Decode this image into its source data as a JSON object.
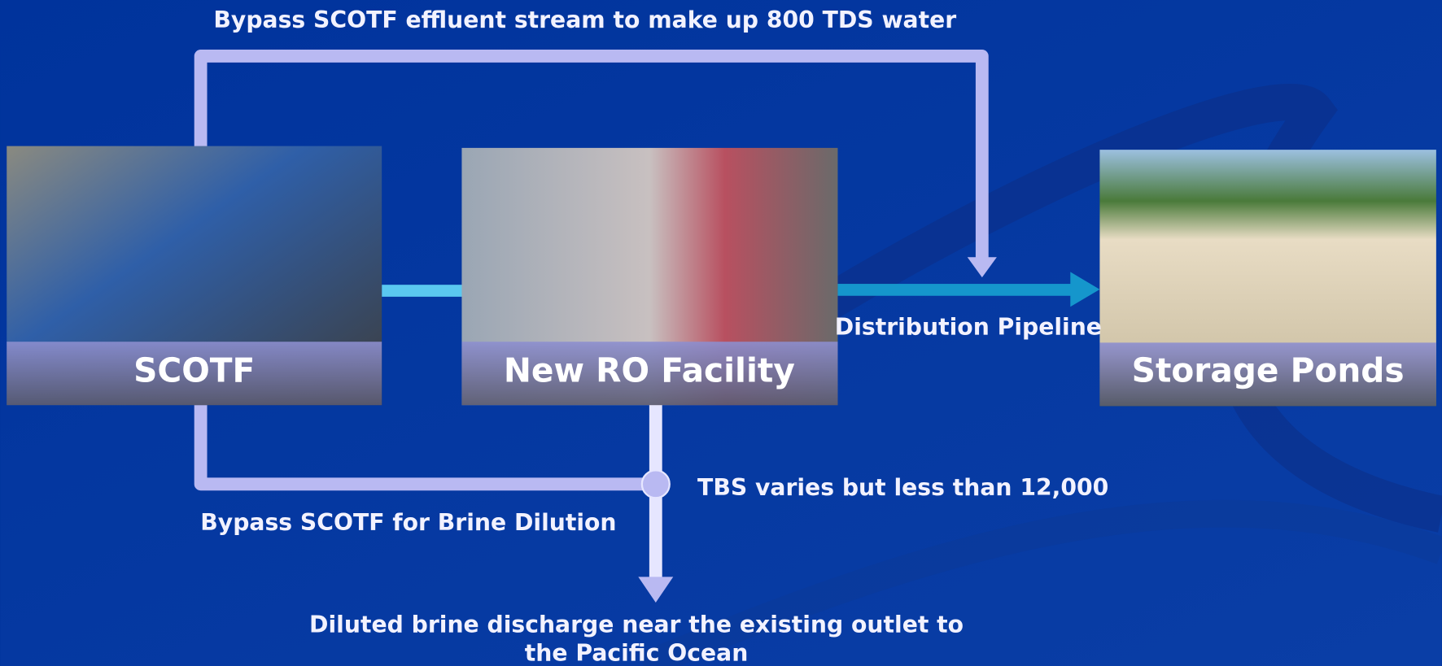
{
  "top_note": "Bypass SCOTF effluent stream to make up 800 TDS water",
  "nodes": [
    {
      "label": "SCOTF"
    },
    {
      "label": "New RO Facility"
    },
    {
      "label": "Storage Ponds"
    }
  ],
  "pipeline_label": "Distribution Pipeline",
  "tbs_note": "TBS varies but less than 12,000",
  "brine_bypass_note": "Bypass SCOTF for Brine Dilution",
  "discharge_note": [
    "Diluted brine discharge near the existing outlet to",
    "the Pacific Ocean"
  ]
}
